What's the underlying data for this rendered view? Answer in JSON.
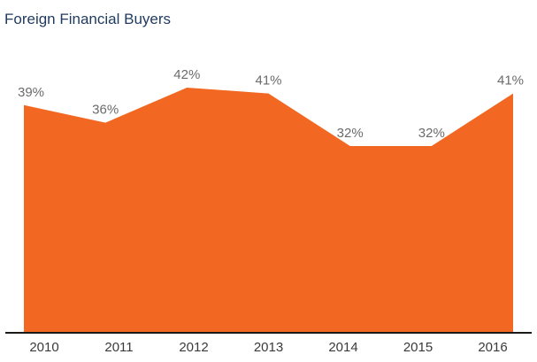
{
  "chart_data": {
    "type": "area",
    "title": "Foreign Financial Buyers",
    "categories": [
      "2010",
      "2011",
      "2012",
      "2013",
      "2014",
      "2015",
      "2016"
    ],
    "values": [
      39,
      36,
      42,
      41,
      32,
      32,
      41
    ],
    "data_labels": [
      "39%",
      "36%",
      "42%",
      "41%",
      "32%",
      "32%",
      "41%"
    ],
    "ylim": [
      0,
      42
    ],
    "grid": false,
    "legend": "none",
    "fill_color": "#f26722",
    "axis_color": "#1a1a1a"
  }
}
